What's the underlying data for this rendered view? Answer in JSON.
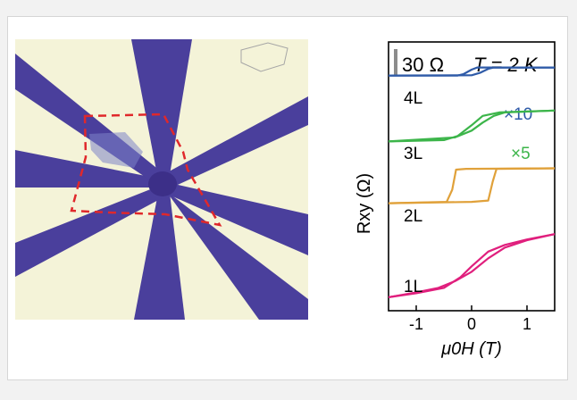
{
  "colors": {
    "background": "#f2f2f2",
    "substrate": "#f4f3d8",
    "electrode": "#4a3f9c",
    "flake_outline": "#e0282b",
    "series_4L": "#2f5ba8",
    "series_3L": "#3cb54a",
    "series_2L": "#e0a13a",
    "series_1L": "#e01f7d",
    "scale_bar": "#8c8c8c"
  },
  "micrograph": {
    "description": "optical image of Hall-bar device with eight electrode arms and dashed flake outline"
  },
  "chart_data": {
    "type": "line",
    "title": "",
    "scale_label": "30 Ω",
    "temperature_label": "T = 2 K",
    "xlabel": "μ0H (T)",
    "ylabel": "Rxy (Ω)",
    "xlim": [
      -1.5,
      1.5
    ],
    "x_ticks": [
      "-1",
      "0",
      "1"
    ],
    "x_tick_values": [
      -1,
      0,
      1
    ],
    "ylim": [
      0,
      10
    ],
    "series": [
      {
        "name": "4L",
        "multiplier": "×10",
        "color_key": "series_4L",
        "up": [
          [
            -1.5,
            8.75
          ],
          [
            -0.25,
            8.75
          ],
          [
            -0.15,
            8.8
          ],
          [
            0.0,
            8.97
          ],
          [
            0.1,
            9.05
          ],
          [
            1.5,
            9.05
          ]
        ],
        "down": [
          [
            1.5,
            9.05
          ],
          [
            0.4,
            9.05
          ],
          [
            0.3,
            9.0
          ],
          [
            0.15,
            8.85
          ],
          [
            0.0,
            8.76
          ],
          [
            -1.5,
            8.75
          ]
        ]
      },
      {
        "name": "3L",
        "multiplier": "×5",
        "color_key": "series_3L",
        "up": [
          [
            -1.5,
            6.3
          ],
          [
            -0.5,
            6.35
          ],
          [
            -0.25,
            6.5
          ],
          [
            0.0,
            6.9
          ],
          [
            0.2,
            7.25
          ],
          [
            0.5,
            7.38
          ],
          [
            1.5,
            7.45
          ]
        ],
        "down": [
          [
            1.5,
            7.45
          ],
          [
            0.6,
            7.38
          ],
          [
            0.4,
            7.25
          ],
          [
            0.2,
            7.0
          ],
          [
            0.0,
            6.7
          ],
          [
            -0.3,
            6.45
          ],
          [
            -1.5,
            6.3
          ]
        ]
      },
      {
        "name": "2L",
        "multiplier": "",
        "color_key": "series_2L",
        "up": [
          [
            -1.5,
            4.0
          ],
          [
            -0.45,
            4.05
          ],
          [
            -0.35,
            4.5
          ],
          [
            -0.28,
            5.25
          ],
          [
            -0.1,
            5.28
          ],
          [
            1.5,
            5.3
          ]
        ],
        "down": [
          [
            1.5,
            5.3
          ],
          [
            0.45,
            5.28
          ],
          [
            0.38,
            4.8
          ],
          [
            0.3,
            4.1
          ],
          [
            0.0,
            4.05
          ],
          [
            -1.5,
            4.0
          ]
        ]
      },
      {
        "name": "1L",
        "multiplier": "",
        "color_key": "series_1L",
        "up": [
          [
            -1.5,
            0.5
          ],
          [
            -1.0,
            0.65
          ],
          [
            -0.5,
            0.85
          ],
          [
            -0.2,
            1.25
          ],
          [
            0.0,
            1.65
          ],
          [
            0.3,
            2.2
          ],
          [
            0.6,
            2.45
          ],
          [
            1.0,
            2.65
          ],
          [
            1.5,
            2.85
          ]
        ],
        "down": [
          [
            1.5,
            2.85
          ],
          [
            1.0,
            2.62
          ],
          [
            0.6,
            2.35
          ],
          [
            0.3,
            1.95
          ],
          [
            0.0,
            1.45
          ],
          [
            -0.3,
            1.1
          ],
          [
            -0.6,
            0.85
          ],
          [
            -1.0,
            0.68
          ],
          [
            -1.5,
            0.5
          ]
        ]
      }
    ]
  }
}
